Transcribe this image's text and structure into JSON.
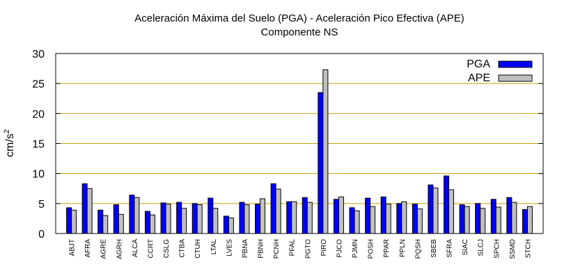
{
  "chart_data": {
    "type": "bar",
    "title": "Aceleración Máxima del Suelo (PGA) -  Aceleración Pico Efectiva (APE)",
    "subtitle": "Componente NS",
    "ylabel_base": "cm/s",
    "ylabel_sup": "2",
    "ylim": [
      0,
      30
    ],
    "yticks": [
      0,
      5,
      10,
      15,
      20,
      25,
      30
    ],
    "grid": true,
    "legend_position": "top-right",
    "categories": [
      "ABJT",
      "AFRA",
      "AGRE",
      "AGRH",
      "ALCA",
      "CCRT",
      "CSLG",
      "CTBA",
      "CTUH",
      "LTAL",
      "LVES",
      "PBNA",
      "PBNH",
      "PCNH",
      "PFAL",
      "PGTO",
      "PIRO",
      "PJCO",
      "PJMN",
      "POSH",
      "PPAR",
      "PPLN",
      "PQSH",
      "SBEB",
      "SFRA",
      "SIAC",
      "SLCJ",
      "SPCH",
      "SSMD",
      "STCH"
    ],
    "series": [
      {
        "name": "PGA",
        "color": "#0000ff",
        "values": [
          4.3,
          8.3,
          3.9,
          4.8,
          6.4,
          3.7,
          5.1,
          5.2,
          5.0,
          5.9,
          2.9,
          5.2,
          4.9,
          8.3,
          5.3,
          6.0,
          23.5,
          5.7,
          4.3,
          5.9,
          6.1,
          5.0,
          4.9,
          8.1,
          9.6,
          4.8,
          5.0,
          5.7,
          6.0,
          4.0
        ]
      },
      {
        "name": "APE",
        "color": "#c0c0c0",
        "values": [
          3.9,
          7.5,
          3.0,
          3.2,
          6.0,
          3.1,
          4.9,
          4.2,
          4.8,
          4.2,
          2.6,
          4.8,
          5.8,
          7.4,
          5.3,
          5.2,
          27.3,
          6.1,
          3.8,
          4.5,
          4.9,
          5.3,
          4.1,
          7.6,
          7.3,
          4.5,
          4.2,
          4.4,
          5.2,
          4.5
        ]
      }
    ],
    "colors": {
      "grid": "#c8a000",
      "axis": "#000000"
    }
  }
}
